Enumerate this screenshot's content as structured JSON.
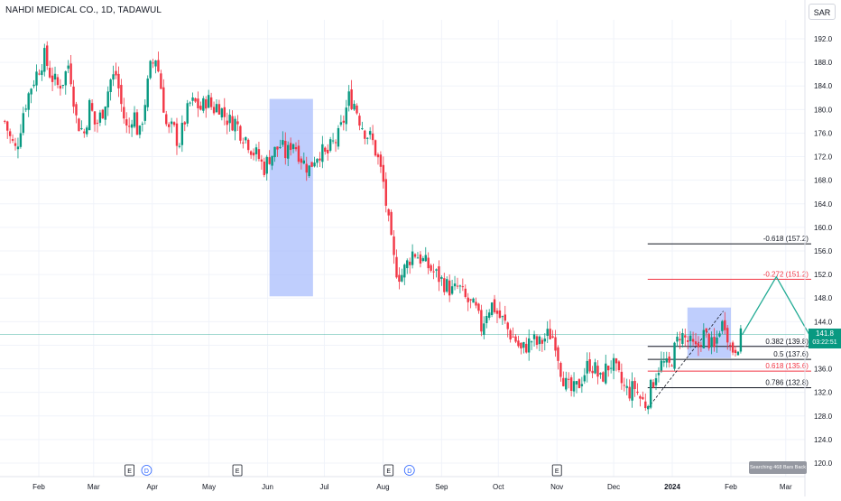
{
  "header": {
    "title": "NAHDI MEDICAL CO., 1D, TADAWUL",
    "currency": "SAR"
  },
  "price_tag": {
    "price": "141.8",
    "countdown": "03:22:51"
  },
  "search_banner": "Searching 468 Bars Back",
  "colors": {
    "up": "#089981",
    "down": "#f23645",
    "box": "#a9bdfc",
    "fib_black": "#131722",
    "fib_red": "#f23645",
    "projection": "#22ab94"
  },
  "chart_data": {
    "type": "candlestick",
    "y_axis": {
      "ticks": [
        120.0,
        124.0,
        128.0,
        132.0,
        136.0,
        140.0,
        144.0,
        148.0,
        152.0,
        156.0,
        160.0,
        164.0,
        168.0,
        172.0,
        176.0,
        180.0,
        184.0,
        188.0,
        192.0
      ],
      "tick_labels": [
        "120.0",
        "124.0",
        "128.0",
        "132.0",
        "136.0",
        "140.0",
        "144.0",
        "148.0",
        "152.0",
        "156.0",
        "160.0",
        "164.0",
        "168.0",
        "172.0",
        "176.0",
        "180.0",
        "184.0",
        "188.0",
        "192.0"
      ],
      "range": [
        119.0,
        193.5
      ]
    },
    "x_axis": {
      "labels": [
        {
          "text": "Feb",
          "day": 0
        },
        {
          "text": "Mar",
          "day": 29
        },
        {
          "text": "Apr",
          "day": 60
        },
        {
          "text": "May",
          "day": 90
        },
        {
          "text": "Jun",
          "day": 121
        },
        {
          "text": "Jul",
          "day": 151
        },
        {
          "text": "Aug",
          "day": 182
        },
        {
          "text": "Sep",
          "day": 213
        },
        {
          "text": "Oct",
          "day": 243
        },
        {
          "text": "Nov",
          "day": 274
        },
        {
          "text": "Dec",
          "day": 304
        },
        {
          "text": "2024",
          "day": 335
        },
        {
          "text": "Feb",
          "day": 366
        },
        {
          "text": "Mar",
          "day": 395
        }
      ],
      "range_days": [
        -20,
        418
      ]
    },
    "events": [
      {
        "type": "E",
        "day": 48
      },
      {
        "type": "D",
        "day": 57
      },
      {
        "type": "E",
        "day": 105
      },
      {
        "type": "E",
        "day": 185
      },
      {
        "type": "D",
        "day": 196
      },
      {
        "type": "E",
        "day": 274
      }
    ],
    "close_trend": [
      [
        -18,
        178
      ],
      [
        -15,
        175
      ],
      [
        -12,
        173
      ],
      [
        -8,
        180
      ],
      [
        -4,
        184
      ],
      [
        0,
        187
      ],
      [
        3,
        189
      ],
      [
        6,
        186
      ],
      [
        10,
        184
      ],
      [
        13,
        185
      ],
      [
        16,
        188
      ],
      [
        20,
        178
      ],
      [
        24,
        176
      ],
      [
        27,
        181
      ],
      [
        30,
        177
      ],
      [
        34,
        180
      ],
      [
        38,
        185
      ],
      [
        41,
        186
      ],
      [
        44,
        180
      ],
      [
        47,
        176
      ],
      [
        50,
        180
      ],
      [
        53,
        175
      ],
      [
        56,
        181
      ],
      [
        59,
        187
      ],
      [
        62,
        189
      ],
      [
        65,
        183
      ],
      [
        68,
        176
      ],
      [
        71,
        177
      ],
      [
        74,
        174
      ],
      [
        77,
        178
      ],
      [
        80,
        181
      ],
      [
        83,
        181
      ],
      [
        86,
        180
      ],
      [
        89,
        182
      ],
      [
        92,
        180
      ],
      [
        95,
        181
      ],
      [
        98,
        179
      ],
      [
        101,
        178
      ],
      [
        104,
        178
      ],
      [
        107,
        176
      ],
      [
        110,
        175
      ],
      [
        113,
        173
      ],
      [
        116,
        172
      ],
      [
        119,
        170
      ],
      [
        122,
        172
      ],
      [
        125,
        173
      ],
      [
        128,
        174
      ],
      [
        131,
        172
      ],
      [
        134,
        175
      ],
      [
        137,
        173
      ],
      [
        140,
        171
      ],
      [
        143,
        170
      ],
      [
        146,
        172
      ],
      [
        149,
        173
      ],
      [
        152,
        172
      ],
      [
        155,
        174
      ],
      [
        158,
        175
      ],
      [
        161,
        178
      ],
      [
        164,
        182
      ],
      [
        167,
        181
      ],
      [
        170,
        178
      ],
      [
        173,
        176
      ],
      [
        176,
        175
      ],
      [
        179,
        172
      ],
      [
        182,
        168
      ],
      [
        184,
        163
      ],
      [
        186,
        158
      ],
      [
        188,
        154
      ],
      [
        190,
        152
      ],
      [
        192,
        152
      ],
      [
        195,
        154
      ],
      [
        198,
        156
      ],
      [
        201,
        155
      ],
      [
        204,
        154
      ],
      [
        207,
        153
      ],
      [
        210,
        152
      ],
      [
        213,
        151
      ],
      [
        216,
        150
      ],
      [
        219,
        149
      ],
      [
        222,
        150
      ],
      [
        225,
        148
      ],
      [
        228,
        147
      ],
      [
        231,
        146
      ],
      [
        234,
        143
      ],
      [
        237,
        146
      ],
      [
        240,
        147
      ],
      [
        243,
        145
      ],
      [
        246,
        144
      ],
      [
        249,
        142
      ],
      [
        252,
        141
      ],
      [
        255,
        139
      ],
      [
        258,
        140
      ],
      [
        261,
        141
      ],
      [
        264,
        140
      ],
      [
        267,
        141
      ],
      [
        270,
        142
      ],
      [
        273,
        141
      ],
      [
        276,
        136
      ],
      [
        279,
        133
      ],
      [
        282,
        132
      ],
      [
        285,
        133
      ],
      [
        288,
        135
      ],
      [
        291,
        137
      ],
      [
        294,
        136
      ],
      [
        297,
        134
      ],
      [
        300,
        136
      ],
      [
        303,
        137
      ],
      [
        306,
        135
      ],
      [
        309,
        133
      ],
      [
        312,
        132
      ],
      [
        315,
        133
      ],
      [
        318,
        131
      ],
      [
        321,
        130
      ],
      [
        324,
        133
      ],
      [
        327,
        136
      ],
      [
        330,
        137
      ],
      [
        333,
        136
      ],
      [
        336,
        139
      ],
      [
        339,
        142
      ],
      [
        342,
        141
      ],
      [
        345,
        140
      ],
      [
        348,
        139
      ],
      [
        351,
        142
      ],
      [
        354,
        141
      ],
      [
        357,
        139
      ],
      [
        360,
        143
      ],
      [
        363,
        144
      ],
      [
        366,
        139
      ],
      [
        369,
        140
      ],
      [
        372,
        141.8
      ]
    ],
    "highlight_boxes": [
      {
        "day_start": 122,
        "day_end": 145,
        "low": 148.3,
        "high": 181.8
      },
      {
        "day_start": 343,
        "day_end": 366,
        "low": 137.8,
        "high": 146.4
      }
    ],
    "fibonacci": {
      "trend_from": {
        "day": 322,
        "price": 129.3
      },
      "trend_to": {
        "day": 362,
        "price": 145.8
      },
      "day_start": 322,
      "day_end": 418,
      "levels": [
        {
          "label": "-0.618 (157.2)",
          "price": 157.2,
          "color": "black"
        },
        {
          "label": "-0.272 (151.2)",
          "price": 151.2,
          "color": "red"
        },
        {
          "label": "0.382 (139.8)",
          "price": 139.8,
          "color": "black"
        },
        {
          "label": "0.5 (137.6)",
          "price": 137.6,
          "color": "black"
        },
        {
          "label": "0.618 (135.6)",
          "price": 135.6,
          "color": "red"
        },
        {
          "label": "0.786 (132.8)",
          "price": 132.8,
          "color": "black"
        }
      ]
    },
    "projection": [
      {
        "day": 372,
        "price": 141.8
      },
      {
        "day": 390,
        "price": 151.6
      },
      {
        "day": 408,
        "price": 141.5
      }
    ],
    "last_price": 141.8
  }
}
